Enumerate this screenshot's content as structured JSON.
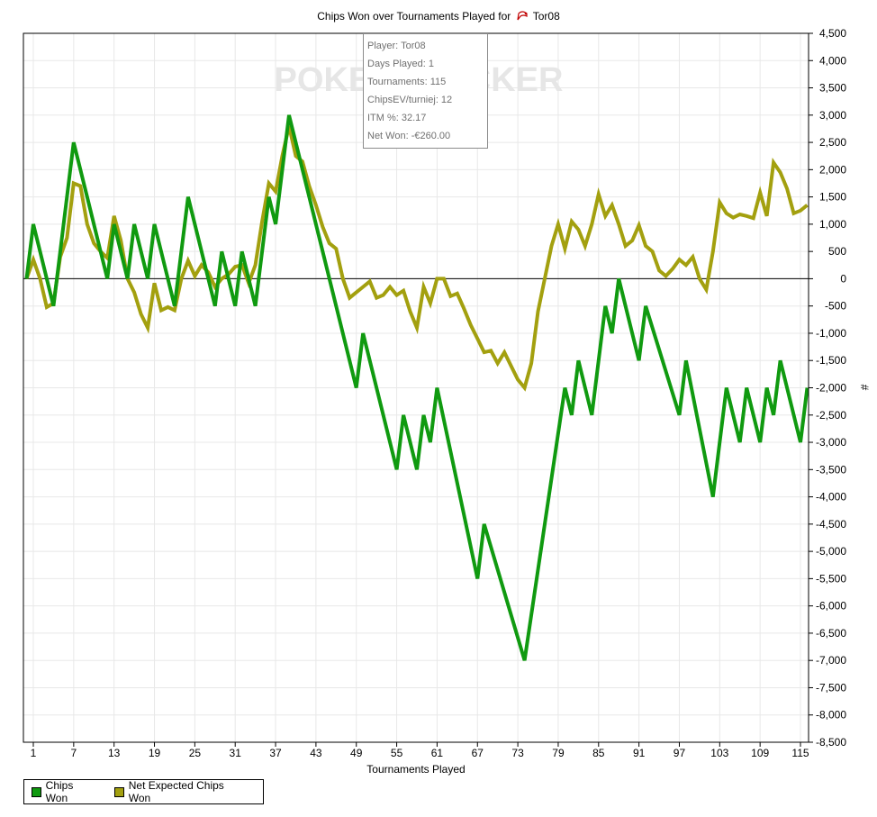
{
  "title": {
    "prefix": "Chips Won over Tournaments Played for",
    "player": "Tor08"
  },
  "watermark": "POKERTRACKER",
  "tooltip": {
    "rows": [
      "Player: Tor08",
      "Days Played: 1",
      "Tournaments: 115",
      "ChipsEV/turniej: 12",
      "ITM %: 32.17",
      "Net Won: -€260.00"
    ]
  },
  "colors": {
    "chips_won": "#109a10",
    "net_expected": "#a3a00f",
    "grid": "#e8e8e8"
  },
  "chart_data": {
    "type": "line",
    "title": "Chips Won over Tournaments Played for Tor08",
    "xlabel": "Tournaments Played",
    "ylabel": "#",
    "xlim": [
      0,
      115
    ],
    "ylim": [
      -8500,
      4500
    ],
    "x_ticks": [
      1,
      7,
      13,
      19,
      25,
      31,
      37,
      43,
      49,
      55,
      61,
      67,
      73,
      79,
      85,
      91,
      97,
      103,
      109,
      115
    ],
    "y_ticks": [
      4500,
      4000,
      3500,
      3000,
      2500,
      2000,
      1500,
      1000,
      500,
      0,
      -500,
      -1000,
      -1500,
      -2000,
      -2500,
      -3000,
      -3500,
      -4000,
      -4500,
      -5000,
      -5500,
      -6000,
      -6500,
      -7000,
      -7500,
      -8000,
      -8500
    ],
    "y_tick_labels": [
      "4,500",
      "4,000",
      "3,500",
      "3,000",
      "2,500",
      "2,000",
      "1,500",
      "1,000",
      "500",
      "0",
      "-500",
      "-1,000",
      "-1,500",
      "-2,000",
      "-2,500",
      "-3,000",
      "-3,500",
      "-4,000",
      "-4,500",
      "-5,000",
      "-5,500",
      "-6,000",
      "-6,500",
      "-7,000",
      "-7,500",
      "-8,000",
      "-8,500"
    ],
    "grid": true,
    "legend_position": "bottom-left",
    "series": [
      {
        "name": "Chips Won",
        "points": [
          [
            0,
            0
          ],
          [
            1,
            1000
          ],
          [
            2,
            500
          ],
          [
            3,
            0
          ],
          [
            4,
            -500
          ],
          [
            5,
            500
          ],
          [
            7,
            2500
          ],
          [
            9,
            1500
          ],
          [
            11,
            500
          ],
          [
            12,
            0
          ],
          [
            13,
            1000
          ],
          [
            15,
            0
          ],
          [
            16,
            1000
          ],
          [
            18,
            0
          ],
          [
            19,
            1000
          ],
          [
            22,
            -500
          ],
          [
            24,
            1500
          ],
          [
            28,
            -500
          ],
          [
            29,
            500
          ],
          [
            31,
            -500
          ],
          [
            32,
            500
          ],
          [
            34,
            -500
          ],
          [
            36,
            1500
          ],
          [
            37,
            1000
          ],
          [
            39,
            3000
          ],
          [
            49,
            -2000
          ],
          [
            50,
            -1000
          ],
          [
            55,
            -3500
          ],
          [
            56,
            -2500
          ],
          [
            58,
            -3500
          ],
          [
            59,
            -2500
          ],
          [
            60,
            -3000
          ],
          [
            61,
            -2000
          ],
          [
            67,
            -5500
          ],
          [
            68,
            -4500
          ],
          [
            74,
            -7000
          ],
          [
            80,
            -2000
          ],
          [
            81,
            -2500
          ],
          [
            82,
            -1500
          ],
          [
            84,
            -2500
          ],
          [
            86,
            -500
          ],
          [
            87,
            -1000
          ],
          [
            88,
            0
          ],
          [
            91,
            -1500
          ],
          [
            92,
            -500
          ],
          [
            97,
            -2500
          ],
          [
            98,
            -1500
          ],
          [
            102,
            -4000
          ],
          [
            104,
            -2000
          ],
          [
            106,
            -3000
          ],
          [
            107,
            -2000
          ],
          [
            109,
            -3000
          ],
          [
            110,
            -2000
          ],
          [
            111,
            -2500
          ],
          [
            112,
            -1500
          ],
          [
            115,
            -3000
          ],
          [
            116,
            -2000
          ]
        ]
      },
      {
        "name": "Net Expected Chips Won",
        "points": [
          [
            0,
            0
          ],
          [
            1,
            350
          ],
          [
            2,
            0
          ],
          [
            3,
            -520
          ],
          [
            4,
            -450
          ],
          [
            5,
            400
          ],
          [
            6,
            750
          ],
          [
            7,
            1750
          ],
          [
            8,
            1700
          ],
          [
            9,
            1000
          ],
          [
            10,
            650
          ],
          [
            11,
            500
          ],
          [
            12,
            380
          ],
          [
            13,
            1150
          ],
          [
            14,
            700
          ],
          [
            15,
            0
          ],
          [
            16,
            -250
          ],
          [
            17,
            -650
          ],
          [
            18,
            -900
          ],
          [
            19,
            -80
          ],
          [
            20,
            -580
          ],
          [
            21,
            -520
          ],
          [
            22,
            -580
          ],
          [
            23,
            0
          ],
          [
            24,
            330
          ],
          [
            25,
            50
          ],
          [
            26,
            250
          ],
          [
            27,
            120
          ],
          [
            28,
            -150
          ],
          [
            29,
            0
          ],
          [
            30,
            80
          ],
          [
            31,
            220
          ],
          [
            32,
            250
          ],
          [
            33,
            -80
          ],
          [
            34,
            250
          ],
          [
            35,
            1050
          ],
          [
            36,
            1750
          ],
          [
            37,
            1600
          ],
          [
            38,
            2250
          ],
          [
            39,
            2800
          ],
          [
            40,
            2250
          ],
          [
            41,
            2150
          ],
          [
            42,
            1700
          ],
          [
            43,
            1350
          ],
          [
            44,
            950
          ],
          [
            45,
            650
          ],
          [
            46,
            550
          ],
          [
            47,
            0
          ],
          [
            48,
            -350
          ],
          [
            49,
            -250
          ],
          [
            50,
            -150
          ],
          [
            51,
            -50
          ],
          [
            52,
            -350
          ],
          [
            53,
            -300
          ],
          [
            54,
            -150
          ],
          [
            55,
            -300
          ],
          [
            56,
            -220
          ],
          [
            57,
            -600
          ],
          [
            58,
            -900
          ],
          [
            59,
            -150
          ],
          [
            60,
            -450
          ],
          [
            61,
            0
          ],
          [
            62,
            0
          ],
          [
            63,
            -320
          ],
          [
            64,
            -270
          ],
          [
            65,
            -550
          ],
          [
            66,
            -850
          ],
          [
            67,
            -1100
          ],
          [
            68,
            -1350
          ],
          [
            69,
            -1320
          ],
          [
            70,
            -1550
          ],
          [
            71,
            -1350
          ],
          [
            72,
            -1600
          ],
          [
            73,
            -1850
          ],
          [
            74,
            -2000
          ],
          [
            75,
            -1550
          ],
          [
            76,
            -600
          ],
          [
            77,
            0
          ],
          [
            78,
            600
          ],
          [
            79,
            1000
          ],
          [
            80,
            550
          ],
          [
            81,
            1050
          ],
          [
            82,
            900
          ],
          [
            83,
            600
          ],
          [
            84,
            1000
          ],
          [
            85,
            1550
          ],
          [
            86,
            1150
          ],
          [
            87,
            1350
          ],
          [
            88,
            1000
          ],
          [
            89,
            600
          ],
          [
            90,
            700
          ],
          [
            91,
            980
          ],
          [
            92,
            600
          ],
          [
            93,
            500
          ],
          [
            94,
            150
          ],
          [
            95,
            50
          ],
          [
            96,
            180
          ],
          [
            97,
            350
          ],
          [
            98,
            250
          ],
          [
            99,
            400
          ],
          [
            100,
            0
          ],
          [
            101,
            -200
          ],
          [
            102,
            500
          ],
          [
            103,
            1400
          ],
          [
            104,
            1200
          ],
          [
            105,
            1120
          ],
          [
            106,
            1180
          ],
          [
            107,
            1150
          ],
          [
            108,
            1110
          ],
          [
            109,
            1580
          ],
          [
            110,
            1150
          ],
          [
            111,
            2130
          ],
          [
            112,
            1950
          ],
          [
            113,
            1650
          ],
          [
            114,
            1200
          ],
          [
            115,
            1250
          ],
          [
            116,
            1350
          ]
        ]
      }
    ]
  }
}
